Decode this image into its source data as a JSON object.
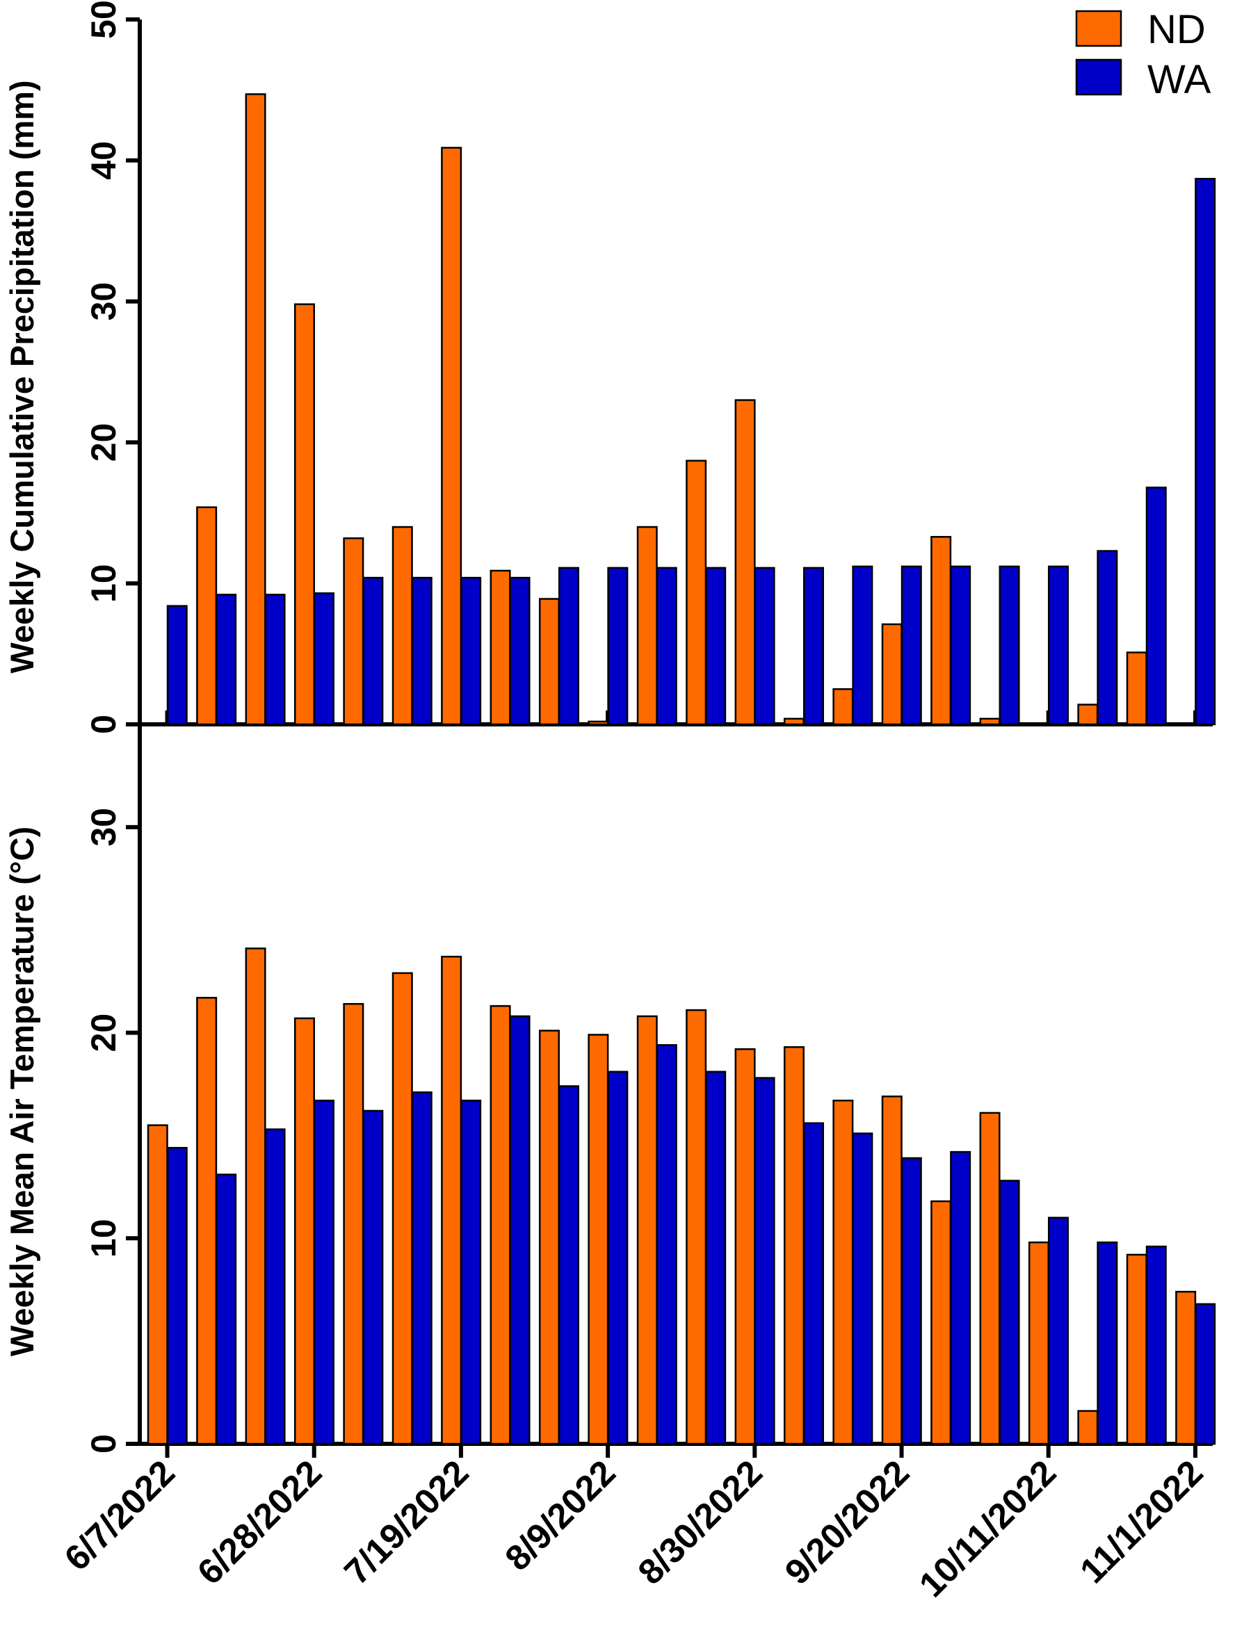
{
  "colors": {
    "ND": "#FF6A00",
    "WA": "#0000C8"
  },
  "x_tick_labels": [
    "6/7/2022",
    "6/28/2022",
    "7/19/2022",
    "8/9/2022",
    "8/30/2022",
    "9/20/2022",
    "10/11/2022",
    "11/1/2022"
  ],
  "legend": [
    "ND",
    "WA"
  ],
  "chart_data": [
    {
      "type": "bar",
      "title": "",
      "xlabel": "",
      "ylabel": "Weekly Cumulative Precipitation (mm)",
      "ylim": [
        0,
        50
      ],
      "yticks": [
        0,
        10,
        20,
        30,
        40,
        50
      ],
      "legend_position": "top-right",
      "categories": [
        "6/7/2022",
        "6/14/2022",
        "6/21/2022",
        "6/28/2022",
        "7/5/2022",
        "7/12/2022",
        "7/19/2022",
        "7/26/2022",
        "8/2/2022",
        "8/9/2022",
        "8/16/2022",
        "8/23/2022",
        "8/30/2022",
        "9/6/2022",
        "9/13/2022",
        "9/20/2022",
        "9/27/2022",
        "10/4/2022",
        "10/11/2022",
        "10/18/2022",
        "10/25/2022",
        "11/1/2022"
      ],
      "series": [
        {
          "name": "ND",
          "values": [
            0,
            15.4,
            44.7,
            29.8,
            13.2,
            14.0,
            40.9,
            10.9,
            8.9,
            0.2,
            14.0,
            18.7,
            23.0,
            0.4,
            2.5,
            7.1,
            13.3,
            0.4,
            0,
            1.4,
            5.1,
            0
          ]
        },
        {
          "name": "WA",
          "values": [
            8.4,
            9.2,
            9.2,
            9.3,
            10.4,
            10.4,
            10.4,
            10.4,
            11.1,
            11.1,
            11.1,
            11.1,
            11.1,
            11.1,
            11.2,
            11.2,
            11.2,
            11.2,
            11.2,
            12.3,
            16.8,
            38.7
          ]
        }
      ]
    },
    {
      "type": "bar",
      "title": "",
      "xlabel": "",
      "ylabel": "Weekly Mean Air Temperature (°C)",
      "ylim": [
        0,
        35
      ],
      "yticks": [
        0,
        10,
        20,
        30
      ],
      "categories": [
        "6/7/2022",
        "6/14/2022",
        "6/21/2022",
        "6/28/2022",
        "7/5/2022",
        "7/12/2022",
        "7/19/2022",
        "7/26/2022",
        "8/2/2022",
        "8/9/2022",
        "8/16/2022",
        "8/23/2022",
        "8/30/2022",
        "9/6/2022",
        "9/13/2022",
        "9/20/2022",
        "9/27/2022",
        "10/4/2022",
        "10/11/2022",
        "10/18/2022",
        "10/25/2022",
        "11/1/2022"
      ],
      "series": [
        {
          "name": "ND",
          "values": [
            15.5,
            21.7,
            24.1,
            20.7,
            21.4,
            22.9,
            23.7,
            21.3,
            20.1,
            19.9,
            20.8,
            21.1,
            19.2,
            19.3,
            16.7,
            16.9,
            11.8,
            16.1,
            9.8,
            1.6,
            9.2,
            7.4
          ]
        },
        {
          "name": "WA",
          "values": [
            14.4,
            13.1,
            15.3,
            16.7,
            16.2,
            17.1,
            16.7,
            20.8,
            17.4,
            18.1,
            19.4,
            18.1,
            17.8,
            15.6,
            15.1,
            13.9,
            14.2,
            12.8,
            11.0,
            9.8,
            9.6,
            6.8
          ]
        }
      ]
    }
  ]
}
